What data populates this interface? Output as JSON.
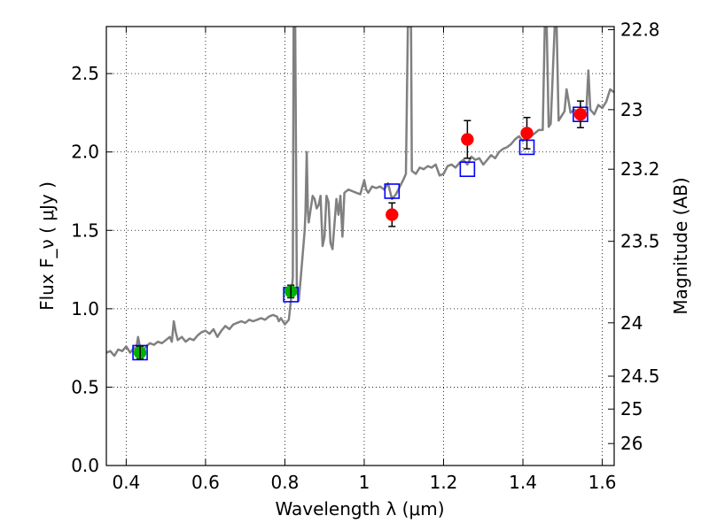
{
  "chart_data": {
    "type": "scatter",
    "xlabel": "Wavelength  λ (μm)",
    "ylabel": "Flux  F_ν ( μJy )",
    "ylabel_right": "Magnitude (AB)",
    "xlim": [
      0.35,
      1.63
    ],
    "ylim": [
      0.0,
      2.8
    ],
    "grid": true,
    "x_ticks": [
      0.4,
      0.6,
      0.8,
      1.0,
      1.2,
      1.4,
      1.6
    ],
    "x_tick_labels": [
      "0.4",
      "0.6",
      "0.8",
      "1",
      "1.2",
      "1.4",
      "1.6"
    ],
    "y_ticks": [
      0.0,
      0.5,
      1.0,
      1.5,
      2.0,
      2.5
    ],
    "y_tick_labels": [
      "0.0",
      "0.5",
      "1.0",
      "1.5",
      "2.0",
      "2.5"
    ],
    "right_ticks": [
      {
        "label": "22.8",
        "flux": 2.78
      },
      {
        "label": "23",
        "flux": 2.27
      },
      {
        "label": "23.2",
        "flux": 1.89
      },
      {
        "label": "23.5",
        "flux": 1.43
      },
      {
        "label": "24",
        "flux": 0.91
      },
      {
        "label": "24.5",
        "flux": 0.57
      },
      {
        "label": "25",
        "flux": 0.36
      },
      {
        "label": "26",
        "flux": 0.14
      }
    ],
    "colors": {
      "spectrum": "#808080",
      "model_box": "#0000ff",
      "hst_point": "#00b000",
      "ir_point": "#ff0000",
      "errorbar": "#000000"
    },
    "series": [
      {
        "type": "line",
        "points": [
          [
            0.35,
            0.72
          ],
          [
            0.36,
            0.73
          ],
          [
            0.37,
            0.7
          ],
          [
            0.38,
            0.74
          ],
          [
            0.39,
            0.73
          ],
          [
            0.4,
            0.76
          ],
          [
            0.41,
            0.72
          ],
          [
            0.42,
            0.75
          ],
          [
            0.425,
            0.74
          ],
          [
            0.43,
            0.82
          ],
          [
            0.435,
            0.75
          ],
          [
            0.44,
            0.72
          ],
          [
            0.45,
            0.76
          ],
          [
            0.46,
            0.78
          ],
          [
            0.47,
            0.77
          ],
          [
            0.48,
            0.79
          ],
          [
            0.49,
            0.78
          ],
          [
            0.5,
            0.8
          ],
          [
            0.51,
            0.82
          ],
          [
            0.515,
            0.79
          ],
          [
            0.52,
            0.92
          ],
          [
            0.525,
            0.85
          ],
          [
            0.53,
            0.8
          ],
          [
            0.54,
            0.82
          ],
          [
            0.55,
            0.79
          ],
          [
            0.56,
            0.81
          ],
          [
            0.57,
            0.8
          ],
          [
            0.58,
            0.83
          ],
          [
            0.59,
            0.85
          ],
          [
            0.6,
            0.86
          ],
          [
            0.61,
            0.84
          ],
          [
            0.62,
            0.87
          ],
          [
            0.63,
            0.82
          ],
          [
            0.64,
            0.86
          ],
          [
            0.65,
            0.89
          ],
          [
            0.66,
            0.87
          ],
          [
            0.67,
            0.9
          ],
          [
            0.68,
            0.91
          ],
          [
            0.69,
            0.92
          ],
          [
            0.7,
            0.91
          ],
          [
            0.71,
            0.93
          ],
          [
            0.72,
            0.92
          ],
          [
            0.73,
            0.93
          ],
          [
            0.74,
            0.94
          ],
          [
            0.75,
            0.93
          ],
          [
            0.76,
            0.95
          ],
          [
            0.77,
            0.96
          ],
          [
            0.78,
            0.95
          ],
          [
            0.785,
            0.92
          ],
          [
            0.79,
            0.94
          ],
          [
            0.8,
            0.9
          ],
          [
            0.81,
            0.93
          ],
          [
            0.815,
            1.05
          ],
          [
            0.82,
            1.2
          ],
          [
            0.822,
            2.8
          ],
          [
            0.826,
            2.8
          ],
          [
            0.83,
            1.15
          ],
          [
            0.835,
            1.05
          ],
          [
            0.84,
            1.2
          ],
          [
            0.845,
            1.35
          ],
          [
            0.85,
            1.5
          ],
          [
            0.852,
            1.62
          ],
          [
            0.855,
            2.0
          ],
          [
            0.858,
            1.62
          ],
          [
            0.86,
            1.55
          ],
          [
            0.87,
            1.72
          ],
          [
            0.875,
            1.7
          ],
          [
            0.88,
            1.64
          ],
          [
            0.885,
            1.66
          ],
          [
            0.89,
            1.72
          ],
          [
            0.895,
            1.4
          ],
          [
            0.9,
            1.46
          ],
          [
            0.905,
            1.72
          ],
          [
            0.91,
            1.68
          ],
          [
            0.915,
            1.42
          ],
          [
            0.92,
            1.38
          ],
          [
            0.93,
            1.7
          ],
          [
            0.935,
            1.6
          ],
          [
            0.94,
            1.72
          ],
          [
            0.945,
            1.46
          ],
          [
            0.95,
            1.74
          ],
          [
            0.96,
            1.76
          ],
          [
            0.97,
            1.75
          ],
          [
            0.98,
            1.74
          ],
          [
            0.99,
            1.73
          ],
          [
            1.0,
            1.82
          ],
          [
            1.005,
            1.76
          ],
          [
            1.01,
            1.74
          ],
          [
            1.02,
            1.78
          ],
          [
            1.03,
            1.77
          ],
          [
            1.04,
            1.78
          ],
          [
            1.05,
            1.76
          ],
          [
            1.06,
            1.8
          ],
          [
            1.07,
            1.7
          ],
          [
            1.08,
            1.73
          ],
          [
            1.09,
            1.78
          ],
          [
            1.1,
            1.83
          ],
          [
            1.105,
            1.86
          ],
          [
            1.11,
            2.8
          ],
          [
            1.118,
            2.8
          ],
          [
            1.12,
            1.88
          ],
          [
            1.13,
            1.86
          ],
          [
            1.14,
            1.9
          ],
          [
            1.15,
            1.89
          ],
          [
            1.16,
            1.91
          ],
          [
            1.17,
            1.9
          ],
          [
            1.18,
            1.92
          ],
          [
            1.19,
            1.85
          ],
          [
            1.2,
            1.86
          ],
          [
            1.21,
            1.91
          ],
          [
            1.22,
            1.92
          ],
          [
            1.23,
            1.9
          ],
          [
            1.24,
            1.93
          ],
          [
            1.25,
            1.95
          ],
          [
            1.26,
            1.92
          ],
          [
            1.27,
            1.97
          ],
          [
            1.28,
            1.95
          ],
          [
            1.29,
            1.96
          ],
          [
            1.3,
            1.92
          ],
          [
            1.31,
            1.95
          ],
          [
            1.32,
            1.98
          ],
          [
            1.33,
            1.96
          ],
          [
            1.34,
            2.0
          ],
          [
            1.35,
            2.02
          ],
          [
            1.36,
            2.03
          ],
          [
            1.37,
            2.05
          ],
          [
            1.38,
            2.08
          ],
          [
            1.39,
            2.1
          ],
          [
            1.4,
            2.07
          ],
          [
            1.41,
            2.12
          ],
          [
            1.42,
            2.1
          ],
          [
            1.43,
            2.12
          ],
          [
            1.44,
            2.14
          ],
          [
            1.45,
            2.14
          ],
          [
            1.455,
            2.8
          ],
          [
            1.46,
            2.8
          ],
          [
            1.465,
            2.16
          ],
          [
            1.47,
            2.18
          ],
          [
            1.48,
            2.8
          ],
          [
            1.485,
            2.8
          ],
          [
            1.49,
            2.2
          ],
          [
            1.5,
            2.24
          ],
          [
            1.505,
            2.26
          ],
          [
            1.51,
            2.4
          ],
          [
            1.52,
            2.25
          ],
          [
            1.53,
            2.27
          ],
          [
            1.54,
            2.24
          ],
          [
            1.55,
            2.26
          ],
          [
            1.56,
            2.27
          ],
          [
            1.565,
            2.52
          ],
          [
            1.57,
            2.27
          ],
          [
            1.58,
            2.24
          ],
          [
            1.59,
            2.3
          ],
          [
            1.6,
            2.28
          ],
          [
            1.61,
            2.32
          ],
          [
            1.62,
            2.4
          ],
          [
            1.63,
            2.38
          ]
        ]
      },
      {
        "type": "boxes",
        "points": [
          {
            "x": 0.435,
            "y": 0.72
          },
          {
            "x": 0.815,
            "y": 1.09
          },
          {
            "x": 1.07,
            "y": 1.75
          },
          {
            "x": 1.26,
            "y": 1.89
          },
          {
            "x": 1.41,
            "y": 2.03
          },
          {
            "x": 1.545,
            "y": 2.24
          }
        ]
      },
      {
        "type": "points_with_error",
        "points": [
          {
            "x": 0.435,
            "y": 0.72,
            "err": 0.04
          },
          {
            "x": 0.815,
            "y": 1.11,
            "err": 0.04
          }
        ]
      },
      {
        "type": "points_with_error",
        "points": [
          {
            "x": 1.07,
            "y": 1.6,
            "err": 0.075
          },
          {
            "x": 1.26,
            "y": 2.08,
            "err": 0.12
          },
          {
            "x": 1.41,
            "y": 2.12,
            "err": 0.1
          },
          {
            "x": 1.545,
            "y": 2.24,
            "err": 0.085
          }
        ]
      }
    ]
  }
}
